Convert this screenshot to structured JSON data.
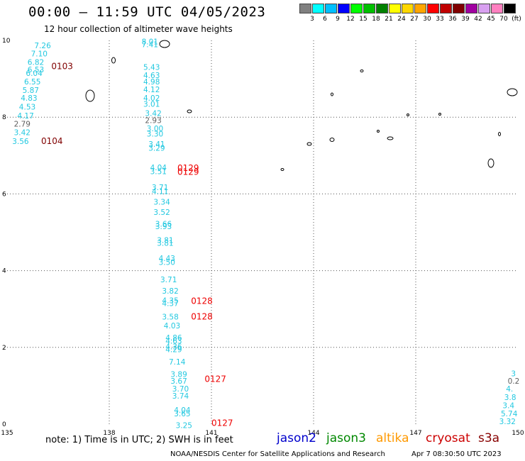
{
  "header": {
    "title": "00:00 – 11:59 UTC 04/05/2023",
    "subtitle": "12 hour collection of altimeter wave heights"
  },
  "legend": {
    "colors": [
      "#808080",
      "#00ffff",
      "#00bfff",
      "#0000ff",
      "#00ff00",
      "#00c000",
      "#008000",
      "#ffff00",
      "#ffd700",
      "#ffa500",
      "#ff0000",
      "#c00000",
      "#800000",
      "#a000a0",
      "#d8a0f0",
      "#ff80c0",
      "#000000"
    ],
    "labels": [
      "3",
      "6",
      "9",
      "12",
      "15",
      "18",
      "21",
      "24",
      "27",
      "30",
      "33",
      "36",
      "39",
      "42",
      "45",
      "70",
      "(ft)"
    ]
  },
  "axes": {
    "x_ticks": [
      "135",
      "138",
      "141",
      "144",
      "147",
      "150"
    ],
    "y_ticks": [
      "0",
      "2",
      "4",
      "6",
      "8",
      "10"
    ]
  },
  "chart_data": {
    "type": "scatter",
    "xlim": [
      135,
      150
    ],
    "ylim": [
      0,
      10
    ],
    "units": "ft",
    "track_labels": [
      {
        "text": "0103",
        "lon": 136.3,
        "lat": 9.25
      },
      {
        "text": "0104",
        "lon": 136.0,
        "lat": 7.3
      },
      {
        "text": "0129",
        "lon": 140.0,
        "lat": 6.6
      },
      {
        "text": "0129",
        "lon": 140.0,
        "lat": 6.5
      },
      {
        "text": "0128",
        "lon": 140.4,
        "lat": 3.13
      },
      {
        "text": "0128",
        "lon": 140.4,
        "lat": 2.73
      },
      {
        "text": "0127",
        "lon": 140.8,
        "lat": 1.1
      },
      {
        "text": "0127",
        "lon": 141.0,
        "lat": -0.05
      }
    ],
    "points": [
      {
        "v": "7.26",
        "lon": 135.8,
        "lat": 9.8
      },
      {
        "v": "7.10",
        "lon": 135.7,
        "lat": 9.58
      },
      {
        "v": "6.82",
        "lon": 135.6,
        "lat": 9.36
      },
      {
        "v": "6.53",
        "lon": 135.6,
        "lat": 9.17
      },
      {
        "v": "6.04",
        "lon": 135.55,
        "lat": 9.08
      },
      {
        "v": "6.55",
        "lon": 135.5,
        "lat": 8.85
      },
      {
        "v": "5.87",
        "lon": 135.45,
        "lat": 8.63
      },
      {
        "v": "4.83",
        "lon": 135.4,
        "lat": 8.43
      },
      {
        "v": "4.53",
        "lon": 135.35,
        "lat": 8.2
      },
      {
        "v": "4.17",
        "lon": 135.3,
        "lat": 7.97
      },
      {
        "v": "2.79",
        "lon": 135.2,
        "lat": 7.75
      },
      {
        "v": "3.42",
        "lon": 135.2,
        "lat": 7.53
      },
      {
        "v": "3.56",
        "lon": 135.15,
        "lat": 7.3
      },
      {
        "v": "8.01",
        "lon": 138.95,
        "lat": 9.9
      },
      {
        "v": "7.41",
        "lon": 138.95,
        "lat": 9.82
      },
      {
        "v": "5.43",
        "lon": 139.0,
        "lat": 9.23
      },
      {
        "v": "4.63",
        "lon": 139.0,
        "lat": 9.02
      },
      {
        "v": "4.98",
        "lon": 139.0,
        "lat": 8.85
      },
      {
        "v": "4.12",
        "lon": 139.0,
        "lat": 8.65
      },
      {
        "v": "4.02",
        "lon": 139.0,
        "lat": 8.43
      },
      {
        "v": "3.01",
        "lon": 139.0,
        "lat": 8.27
      },
      {
        "v": "3.42",
        "lon": 139.05,
        "lat": 8.03
      },
      {
        "v": "2.93",
        "lon": 139.05,
        "lat": 7.85
      },
      {
        "v": "3.00",
        "lon": 139.1,
        "lat": 7.63
      },
      {
        "v": "3.30",
        "lon": 139.1,
        "lat": 7.5
      },
      {
        "v": "3.41",
        "lon": 139.15,
        "lat": 7.23
      },
      {
        "v": "3.29",
        "lon": 139.15,
        "lat": 7.13
      },
      {
        "v": "4.04",
        "lon": 139.2,
        "lat": 6.62
      },
      {
        "v": "3.51",
        "lon": 139.2,
        "lat": 6.52
      },
      {
        "v": "3.71",
        "lon": 139.25,
        "lat": 6.1
      },
      {
        "v": "4.11",
        "lon": 139.25,
        "lat": 6.0
      },
      {
        "v": "3.34",
        "lon": 139.3,
        "lat": 5.72
      },
      {
        "v": "3.52",
        "lon": 139.3,
        "lat": 5.45
      },
      {
        "v": "3.66",
        "lon": 139.35,
        "lat": 5.15
      },
      {
        "v": "3.93",
        "lon": 139.35,
        "lat": 5.08
      },
      {
        "v": "3.81",
        "lon": 139.4,
        "lat": 4.72
      },
      {
        "v": "3.81",
        "lon": 139.4,
        "lat": 4.65
      },
      {
        "v": "4.43",
        "lon": 139.45,
        "lat": 4.25
      },
      {
        "v": "3.50",
        "lon": 139.45,
        "lat": 4.15
      },
      {
        "v": "3.71",
        "lon": 139.5,
        "lat": 3.7
      },
      {
        "v": "3.82",
        "lon": 139.55,
        "lat": 3.4
      },
      {
        "v": "4.35",
        "lon": 139.55,
        "lat": 3.15
      },
      {
        "v": "4.37",
        "lon": 139.55,
        "lat": 3.08
      },
      {
        "v": "3.58",
        "lon": 139.55,
        "lat": 2.73
      },
      {
        "v": "4.03",
        "lon": 139.6,
        "lat": 2.5
      },
      {
        "v": "4.86",
        "lon": 139.65,
        "lat": 2.18
      },
      {
        "v": "4.63",
        "lon": 139.65,
        "lat": 2.1
      },
      {
        "v": "4.36",
        "lon": 139.65,
        "lat": 1.95
      },
      {
        "v": "4.29",
        "lon": 139.65,
        "lat": 1.88
      },
      {
        "v": "7.14",
        "lon": 139.75,
        "lat": 1.55
      },
      {
        "v": "3.89",
        "lon": 139.8,
        "lat": 1.23
      },
      {
        "v": "3.67",
        "lon": 139.8,
        "lat": 1.05
      },
      {
        "v": "3.70",
        "lon": 139.85,
        "lat": 0.85
      },
      {
        "v": "3.74",
        "lon": 139.85,
        "lat": 0.67
      },
      {
        "v": "4.04",
        "lon": 139.9,
        "lat": 0.3
      },
      {
        "v": "3.65",
        "lon": 139.9,
        "lat": 0.2
      },
      {
        "v": "3.25",
        "lon": 139.95,
        "lat": -0.1
      },
      {
        "v": "3",
        "lon": 149.8,
        "lat": 1.25
      },
      {
        "v": "0.2",
        "lon": 149.7,
        "lat": 1.05
      },
      {
        "v": "4.",
        "lon": 149.65,
        "lat": 0.85
      },
      {
        "v": "3.8",
        "lon": 149.6,
        "lat": 0.63
      },
      {
        "v": "3.4",
        "lon": 149.55,
        "lat": 0.42
      },
      {
        "v": "5.74",
        "lon": 149.5,
        "lat": 0.2
      },
      {
        "v": "3.32",
        "lon": 149.45,
        "lat": 0.0
      }
    ]
  },
  "sats": {
    "jason2": {
      "label": "jason2",
      "color": "#0000cc"
    },
    "jason3": {
      "label": "jason3",
      "color": "#008800"
    },
    "altika": {
      "label": "altika",
      "color": "#ff9900"
    },
    "cryosat": {
      "label": "cryosat",
      "color": "#cc0000"
    },
    "s3a": {
      "label": "s3a",
      "color": "#880000"
    }
  },
  "footer": {
    "note": "note: 1) Time is in UTC; 2) SWH is in feet",
    "credit": "NOAA/NESDIS Center for Satellite Applications and Research",
    "timestamp": "Apr  7 08:30:50 UTC 2023"
  }
}
